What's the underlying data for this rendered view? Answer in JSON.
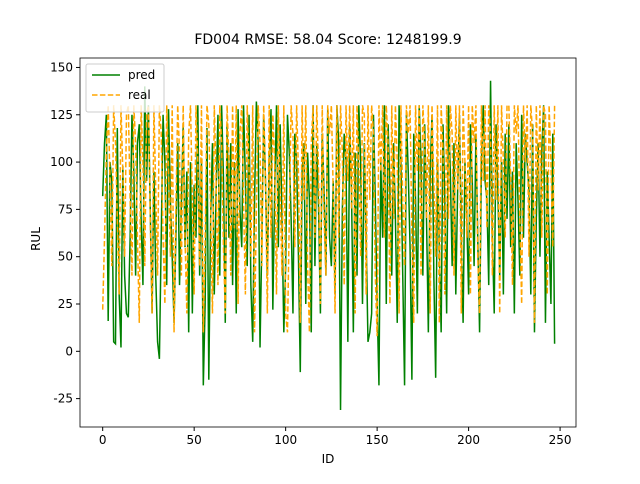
{
  "chart_data": {
    "type": "line",
    "title": "FD004 RMSE:  58.04  Score: 1248199.9",
    "x_label": "ID",
    "y_label": "RUL",
    "xlim": [
      -12.4,
      258.7
    ],
    "ylim": [
      -40,
      155
    ],
    "xticks": [
      0,
      50,
      100,
      150,
      200,
      250
    ],
    "yticks": [
      -25,
      0,
      25,
      50,
      75,
      100,
      125,
      150
    ],
    "legend": "upper left",
    "x": [
      0,
      1,
      2,
      3,
      4,
      5,
      6,
      7,
      8,
      9,
      10,
      11,
      12,
      13,
      14,
      15,
      16,
      17,
      18,
      19,
      20,
      21,
      22,
      23,
      24,
      25,
      26,
      27,
      28,
      29,
      30,
      31,
      32,
      33,
      34,
      35,
      36,
      37,
      38,
      39,
      40,
      41,
      42,
      43,
      44,
      45,
      46,
      47,
      48,
      49,
      50,
      51,
      52,
      53,
      54,
      55,
      56,
      57,
      58,
      59,
      60,
      61,
      62,
      63,
      64,
      65,
      66,
      67,
      68,
      69,
      70,
      71,
      72,
      73,
      74,
      75,
      76,
      77,
      78,
      79,
      80,
      81,
      82,
      83,
      84,
      85,
      86,
      87,
      88,
      89,
      90,
      91,
      92,
      93,
      94,
      95,
      96,
      97,
      98,
      99,
      100,
      101,
      102,
      103,
      104,
      105,
      106,
      107,
      108,
      109,
      110,
      111,
      112,
      113,
      114,
      115,
      116,
      117,
      118,
      119,
      120,
      121,
      122,
      123,
      124,
      125,
      126,
      127,
      128,
      129,
      130,
      131,
      132,
      133,
      134,
      135,
      136,
      137,
      138,
      139,
      140,
      141,
      142,
      143,
      144,
      145,
      146,
      147,
      148,
      149,
      150,
      151,
      152,
      153,
      154,
      155,
      156,
      157,
      158,
      159,
      160,
      161,
      162,
      163,
      164,
      165,
      166,
      167,
      168,
      169,
      170,
      171,
      172,
      173,
      174,
      175,
      176,
      177,
      178,
      179,
      180,
      181,
      182,
      183,
      184,
      185,
      186,
      187,
      188,
      189,
      190,
      191,
      192,
      193,
      194,
      195,
      196,
      197,
      198,
      199,
      200,
      201,
      202,
      203,
      204,
      205,
      206,
      207,
      208,
      209,
      210,
      211,
      212,
      213,
      214,
      215,
      216,
      217,
      218,
      219,
      220,
      221,
      222,
      223,
      224,
      225,
      226,
      227,
      228,
      229,
      230,
      231,
      232,
      233,
      234,
      235,
      236,
      237,
      238,
      239,
      240,
      241,
      242,
      243,
      244,
      245,
      246,
      247
    ],
    "series": [
      {
        "name": "pred",
        "color": "#008000",
        "linestyle": "solid",
        "values": [
          82,
          110,
          125,
          16,
          100,
          90,
          5,
          4,
          118,
          30,
          2,
          98,
          40,
          20,
          18,
          60,
          125,
          95,
          40,
          110,
          120,
          70,
          35,
          140,
          90,
          130,
          75,
          20,
          95,
          40,
          5,
          -4,
          60,
          125,
          100,
          35,
          128,
          80,
          50,
          15,
          60,
          110,
          35,
          78,
          120,
          55,
          95,
          10,
          100,
          20,
          88,
          60,
          130,
          40,
          100,
          -18,
          25,
          118,
          -15,
          70,
          110,
          30,
          85,
          125,
          40,
          130,
          92,
          15,
          120,
          60,
          110,
          35,
          100,
          20,
          128,
          75,
          55,
          130,
          90,
          45,
          125,
          35,
          5,
          80,
          132,
          110,
          2,
          60,
          125,
          90,
          40,
          100,
          128,
          22,
          85,
          130,
          55,
          120,
          70,
          10,
          45,
          125,
          105,
          70,
          20,
          115,
          100,
          50,
          -11,
          95,
          110,
          25,
          105,
          80,
          10,
          130,
          45,
          110,
          75,
          20,
          115,
          85,
          40,
          128,
          60,
          45,
          90,
          30,
          130,
          110,
          -31,
          75,
          115,
          100,
          5,
          120,
          85,
          10,
          105,
          40,
          130,
          100,
          25,
          110,
          60,
          5,
          10,
          20,
          125,
          80,
          25,
          -18,
          100,
          60,
          130,
          25,
          120,
          85,
          40,
          110,
          70,
          15,
          130,
          100,
          40,
          -18,
          125,
          95,
          55,
          -15,
          115,
          80,
          20,
          130,
          100,
          40,
          120,
          70,
          10,
          95,
          125,
          40,
          -14,
          100,
          55,
          10,
          120,
          80,
          20,
          130,
          95,
          45,
          110,
          30,
          85,
          125,
          60,
          15,
          100,
          70,
          30,
          120,
          90,
          45,
          115,
          60,
          10,
          100,
          130,
          90,
          80,
          35,
          143,
          60,
          20,
          120,
          85,
          40,
          100,
          30,
          115,
          70,
          120,
          55,
          95,
          20,
          110,
          80,
          40,
          125,
          60,
          115,
          100,
          85,
          30,
          120,
          10,
          70,
          110,
          50,
          105,
          130,
          15,
          95,
          60,
          25,
          115,
          4
        ]
      },
      {
        "name": "real",
        "color": "#ffa500",
        "linestyle": "dashed",
        "values": [
          22,
          60,
          105,
          130,
          90,
          45,
          130,
          110,
          70,
          30,
          130,
          95,
          50,
          125,
          130,
          80,
          40,
          130,
          110,
          60,
          15,
          130,
          100,
          45,
          125,
          130,
          70,
          20,
          130,
          85,
          40,
          130,
          115,
          60,
          25,
          130,
          95,
          50,
          130,
          10,
          75,
          130,
          105,
          40,
          130,
          60,
          20,
          115,
          130,
          80,
          30,
          130,
          100,
          45,
          130,
          10,
          60,
          130,
          120,
          75,
          20,
          130,
          90,
          35,
          130,
          110,
          55,
          20,
          130,
          100,
          40,
          130,
          65,
          130,
          25,
          115,
          130,
          80,
          30,
          130,
          95,
          50,
          130,
          10,
          75,
          130,
          110,
          45,
          130,
          90,
          20,
          130,
          60,
          125,
          100,
          30,
          130,
          85,
          40,
          130,
          20,
          10,
          70,
          130,
          115,
          55,
          130,
          95,
          15,
          130,
          80,
          130,
          45,
          10,
          110,
          130,
          60,
          130,
          95,
          25,
          130,
          70,
          40,
          130,
          115,
          130,
          85,
          20,
          130,
          60,
          130,
          105,
          35,
          130,
          90,
          130,
          75,
          130,
          20,
          130,
          100,
          50,
          130,
          125,
          30,
          130,
          80,
          130,
          115,
          40,
          8,
          130,
          95,
          130,
          60,
          130,
          110,
          25,
          130,
          70,
          130,
          100,
          20,
          130,
          80,
          45,
          130,
          115,
          130,
          60,
          15,
          130,
          95,
          130,
          40,
          130,
          110,
          70,
          130,
          20,
          130,
          90,
          50,
          130,
          15,
          130,
          105,
          30,
          130,
          70,
          130,
          115,
          40,
          130,
          85,
          130,
          20,
          130,
          100,
          60,
          130,
          30,
          130,
          110,
          130,
          50,
          20,
          130,
          90,
          130,
          65,
          130,
          115,
          40,
          130,
          80,
          130,
          20,
          130,
          100,
          60,
          130,
          130,
          90,
          35,
          130,
          115,
          130,
          70,
          25,
          130,
          100,
          130,
          50,
          130,
          115,
          15,
          130,
          85,
          130,
          60,
          130,
          125,
          30,
          130,
          100,
          55,
          130
        ]
      }
    ]
  }
}
